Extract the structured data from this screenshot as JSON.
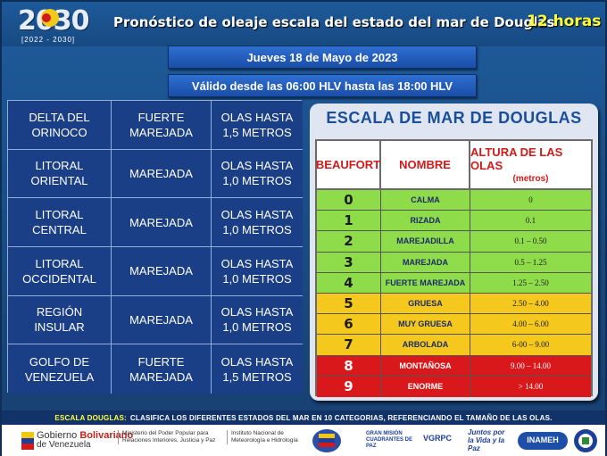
{
  "header": {
    "logo_year": "2030",
    "logo_sub": "[2022 - 2030]",
    "title": "Pronóstico de oleaje escala del estado del mar de Douglas",
    "hours": "12 horas"
  },
  "banners": {
    "date": "Jueves 18 de Mayo de 2023",
    "valid": "Válido desde las 06:00 HLV hasta las 18:00 HLV"
  },
  "regions": [
    {
      "zone": "DELTA DEL\nORINOCO",
      "state": "FUERTE\nMAREJADA",
      "waves": "OLAS HASTA\n1,5 METROS"
    },
    {
      "zone": "LITORAL\nORIENTAL",
      "state": "MAREJADA",
      "waves": "OLAS HASTA\n1,0 METROS"
    },
    {
      "zone": "LITORAL\nCENTRAL",
      "state": "MAREJADA",
      "waves": "OLAS HASTA\n1,0 METROS"
    },
    {
      "zone": "LITORAL\nOCCIDENTAL",
      "state": "MAREJADA",
      "waves": "OLAS HASTA\n1,0 METROS"
    },
    {
      "zone": "REGIÓN\nINSULAR",
      "state": "MAREJADA",
      "waves": "OLAS HASTA\n1,0 METROS"
    },
    {
      "zone": "GOLFO DE\nVENEZUELA",
      "state": "FUERTE\nMAREJADA",
      "waves": "OLAS HASTA\n1,5 METROS"
    }
  ],
  "scale": {
    "title": "ESCALA DE MAR DE DOUGLAS",
    "col_beaufort": "BEAUFORT",
    "col_name": "NOMBRE",
    "col_height": "ALTURA DE LAS OLAS",
    "col_height_unit": "(metros)",
    "rows": [
      {
        "n": "0",
        "name": "CALMA",
        "height": "0",
        "color": "#8fdc4a"
      },
      {
        "n": "1",
        "name": "RIZADA",
        "height": "0.1",
        "color": "#8fdc4a"
      },
      {
        "n": "2",
        "name": "MAREJADILLA",
        "height": "0.1 – 0.50",
        "color": "#8fdc4a"
      },
      {
        "n": "3",
        "name": "MAREJADA",
        "height": "0.5 – 1.25",
        "color": "#8fdc4a"
      },
      {
        "n": "4",
        "name": "FUERTE MAREJADA",
        "height": "1.25 – 2.50",
        "color": "#8fdc4a"
      },
      {
        "n": "5",
        "name": "GRUESA",
        "height": "2.50 – 4.00",
        "color": "#f4c81c"
      },
      {
        "n": "6",
        "name": "MUY GRUESA",
        "height": "4.00 – 6.00",
        "color": "#f4c81c"
      },
      {
        "n": "7",
        "name": "ARBOLADA",
        "height": "6-00 – 9.00",
        "color": "#f4c81c"
      },
      {
        "n": "8",
        "name": "MONTAÑOSA",
        "height": "9.00 – 14.00",
        "color": "#d9181c"
      },
      {
        "n": "9",
        "name": "ENORME",
        "height": "> 14.00",
        "color": "#d9181c"
      }
    ]
  },
  "footer": {
    "label": "ESCALA DOUGLAS:",
    "text": "CLASIFICA LOS DIFERENTES ESTADOS DEL MAR EN 10 CATEGORIAS, REFERENCIANDO EL TAMAÑO DE LAS OLAS."
  },
  "logos": {
    "gov_line1a": "Gobierno ",
    "gov_line1b": "Bolivariano",
    "gov_line2": "de Venezuela",
    "ministry": "Ministerio del Poder Popular para Relaciones Interiores, Justicia y Paz",
    "institute": "Instituto Nacional de Meteorología e Hidrología",
    "vgrpc": "VGRPC",
    "juntos": "Juntos por la Vida y la Paz",
    "inameh": "INAMEH",
    "cuadrantes": "GRAN MISIÓN CUADRANTES DE PAZ"
  }
}
